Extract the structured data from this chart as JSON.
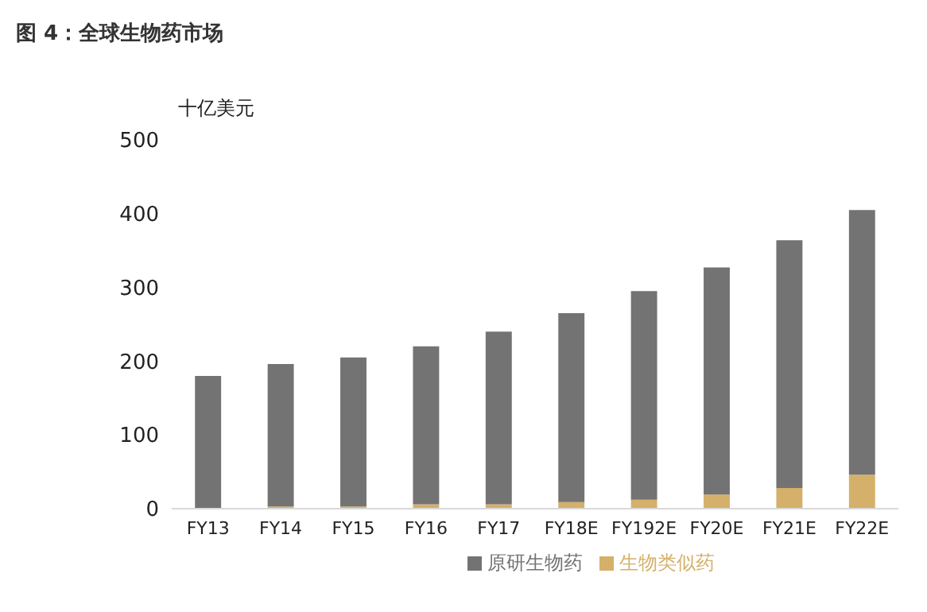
{
  "chart_data": {
    "type": "bar",
    "title": "图 4：全球生物药市场",
    "ylabel": "十亿美元",
    "categories": [
      "FY13",
      "FY14",
      "FY15",
      "FY16",
      "FY17",
      "FY18E",
      "FY192E",
      "FY20E",
      "FY21E",
      "FY22E"
    ],
    "series": [
      {
        "name": "生物类似药",
        "color": "#d4b06a",
        "values": [
          null,
          3,
          3,
          6,
          6,
          9,
          12,
          19,
          28,
          46
        ]
      },
      {
        "name": "原研生物药",
        "color": "#737373",
        "values": [
          180,
          193,
          202,
          214,
          234,
          256,
          283,
          308,
          336,
          359
        ]
      }
    ],
    "stacked": true,
    "ylim": [
      0,
      500
    ],
    "yticks": [
      0,
      100,
      200,
      300,
      400,
      500
    ],
    "grid": false,
    "legend": "bottom"
  }
}
